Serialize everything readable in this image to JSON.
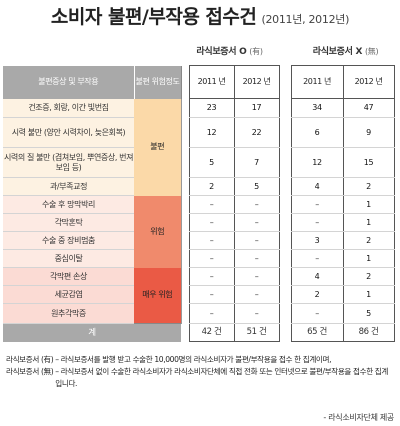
{
  "title": {
    "main": "소비자 불편/부작용 접수건",
    "sub": "(2011년, 2012년)"
  },
  "groups": [
    {
      "label": "라식보증서 O",
      "mark": "(有)"
    },
    {
      "label": "라식보증서 X",
      "mark": "(無)"
    }
  ],
  "headers": {
    "symptom": "불편증상 및 부작용",
    "level": "불편 위험정도",
    "years": [
      "2011 년",
      "2012 년",
      "2011 년",
      "2012 년"
    ]
  },
  "severity": [
    "불편",
    "위험",
    "매우 위험"
  ],
  "rows": [
    {
      "symptom": "건조증, 회랑, 이간 빛번짐",
      "values": [
        "23",
        "17",
        "34",
        "47"
      ]
    },
    {
      "symptom": "시력 불만 (양안 시력차이, 늦은회복)",
      "values": [
        "12",
        "22",
        "6",
        "9"
      ]
    },
    {
      "symptom": "시력의 질 불만 (겹쳐보임, 뿌연증상, 번져보임 등)",
      "values": [
        "5",
        "7",
        "12",
        "15"
      ]
    },
    {
      "symptom": "과/부족교정",
      "values": [
        "2",
        "5",
        "4",
        "2"
      ]
    },
    {
      "symptom": "수술 후 망막박리",
      "values": [
        "–",
        "–",
        "–",
        "1"
      ]
    },
    {
      "symptom": "각막혼탁",
      "values": [
        "–",
        "–",
        "–",
        "1"
      ]
    },
    {
      "symptom": "수술 중 장비멈춤",
      "values": [
        "–",
        "–",
        "3",
        "2"
      ]
    },
    {
      "symptom": "중심이탈",
      "values": [
        "–",
        "–",
        "–",
        "1"
      ]
    },
    {
      "symptom": "각막편 손상",
      "values": [
        "–",
        "–",
        "4",
        "2"
      ]
    },
    {
      "symptom": "세균감염",
      "values": [
        "–",
        "–",
        "2",
        "1"
      ]
    },
    {
      "symptom": "원추각막증",
      "values": [
        "–",
        "–",
        "–",
        "5"
      ]
    }
  ],
  "total": {
    "label": "계",
    "values": [
      "42 건",
      "51 건",
      "65 건",
      "86 건"
    ]
  },
  "notes": [
    {
      "label": "라식보증서 (有)",
      "text": "– 라식보증서를 발행 받고 수술한 10,000명의 라식소비자가 불편/부작용을 접수 한 집계이며,"
    },
    {
      "label": "라식보증서 (無)",
      "text": "– 라식보증서 없이 수술한 라식소비자가 라식소비자단체에 직접 전화 또는 인터넷으로 불편/부작용을 접수한 집계입니다."
    }
  ],
  "source": "- 라식소비자단체 제공"
}
